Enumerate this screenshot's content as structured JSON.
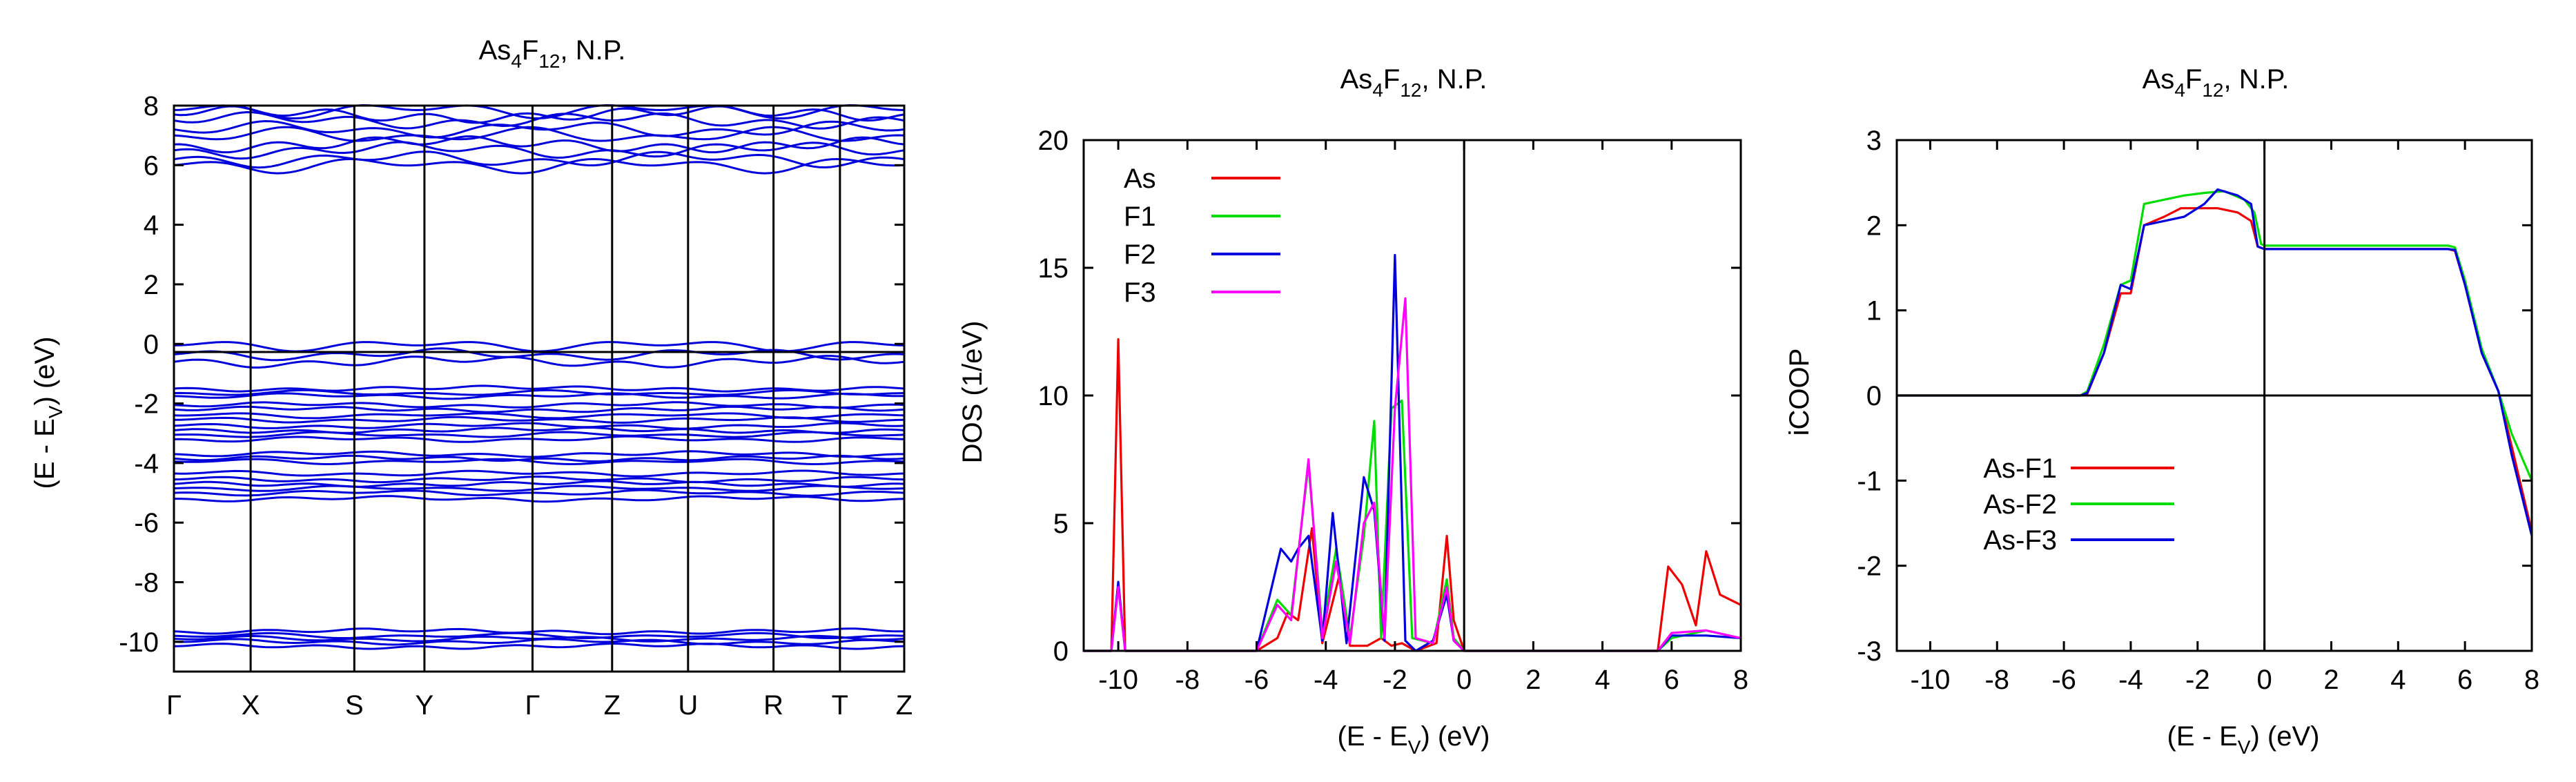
{
  "colors": {
    "As": "#ee0000",
    "F1": "#00dd00",
    "F2": "#0000dd",
    "F3": "#ff00ff",
    "band": "#0000dd",
    "As-F1": "#ee0000",
    "As-F2": "#00dd00",
    "As-F3": "#0000dd"
  },
  "chart_data": [
    {
      "type": "line",
      "kind": "band-structure",
      "title": "As4F12, N.P.",
      "title_parts": {
        "pre": "As",
        "sub1": "4",
        "mid": "F",
        "sub2": "12",
        "post": ", N.P."
      },
      "ylabel_parts": {
        "pre": "(E - E",
        "sub": "V",
        "post": ") (eV)"
      },
      "xlabel": "",
      "ylim": [
        -11,
        8
      ],
      "yticks": [
        8,
        6,
        4,
        2,
        0,
        -2,
        -4,
        -6,
        -8,
        -10
      ],
      "kpoints": [
        "Γ",
        "X",
        "S",
        "Y",
        "Γ",
        "Z",
        "U",
        "R",
        "T",
        "Z"
      ],
      "kpoint_positions": [
        0,
        0.105,
        0.247,
        0.343,
        0.491,
        0.6,
        0.704,
        0.821,
        0.912,
        1.0
      ],
      "bands_valence_upper": [
        -0.05,
        -0.35,
        -0.6,
        -1.5,
        -1.65,
        -1.75,
        -2.05,
        -2.2,
        -2.4,
        -2.55,
        -2.75,
        -2.9,
        -3.05,
        -3.2,
        -3.7,
        -3.85,
        -3.95,
        -4.35,
        -4.55,
        -4.7,
        -4.85,
        -5.0,
        -5.2
      ],
      "bands_deep": [
        -9.65,
        -9.8,
        -9.9,
        -10.0,
        -10.15
      ],
      "bands_conduction": [
        6.0,
        6.2,
        6.5,
        6.7,
        7.0,
        7.2,
        7.5,
        7.7,
        7.85
      ]
    },
    {
      "type": "line",
      "kind": "density-of-states",
      "title": "As4F12, N.P.",
      "title_parts": {
        "pre": "As",
        "sub1": "4",
        "mid": "F",
        "sub2": "12",
        "post": ", N.P."
      },
      "xlabel_parts": {
        "pre": "(E - E",
        "sub": "V",
        "post": ") (eV)"
      },
      "ylabel": "DOS (1/eV)",
      "xlim": [
        -11,
        8
      ],
      "ylim": [
        0,
        20
      ],
      "xticks": [
        -10,
        -8,
        -6,
        -4,
        -2,
        0,
        2,
        4,
        6,
        8
      ],
      "yticks": [
        0,
        5,
        10,
        15,
        20
      ],
      "legend_position": "top-left",
      "series": [
        {
          "name": "As",
          "points": [
            [
              -11,
              0
            ],
            [
              -10.2,
              0
            ],
            [
              -10,
              12.2
            ],
            [
              -9.8,
              0
            ],
            [
              -6,
              0
            ],
            [
              -5.4,
              0.5
            ],
            [
              -5.1,
              1.5
            ],
            [
              -4.8,
              1.2
            ],
            [
              -4.4,
              4.8
            ],
            [
              -4.1,
              0.3
            ],
            [
              -3.6,
              3
            ],
            [
              -3.3,
              0.2
            ],
            [
              -2.8,
              0.2
            ],
            [
              -2.4,
              0.5
            ],
            [
              -2.1,
              0.2
            ],
            [
              -1.8,
              0.3
            ],
            [
              -1.4,
              0
            ],
            [
              -0.8,
              0.3
            ],
            [
              -0.5,
              4.5
            ],
            [
              -0.3,
              1.2
            ],
            [
              0,
              0
            ],
            [
              5.6,
              0
            ],
            [
              5.9,
              3.3
            ],
            [
              6.3,
              2.6
            ],
            [
              6.7,
              1.0
            ],
            [
              7.0,
              3.9
            ],
            [
              7.4,
              2.2
            ],
            [
              8,
              1.8
            ]
          ]
        },
        {
          "name": "F1",
          "points": [
            [
              -11,
              0
            ],
            [
              -10.2,
              0
            ],
            [
              -10,
              2.6
            ],
            [
              -9.8,
              0
            ],
            [
              -6,
              0
            ],
            [
              -5.4,
              2
            ],
            [
              -5.0,
              1.4
            ],
            [
              -4.5,
              7.3
            ],
            [
              -4.1,
              0.8
            ],
            [
              -3.7,
              4
            ],
            [
              -3.3,
              0.5
            ],
            [
              -2.9,
              4.5
            ],
            [
              -2.6,
              9
            ],
            [
              -2.4,
              0.5
            ],
            [
              -2.1,
              9.5
            ],
            [
              -1.8,
              9.8
            ],
            [
              -1.5,
              0.5
            ],
            [
              -0.9,
              0.3
            ],
            [
              -0.5,
              2.8
            ],
            [
              -0.3,
              0.5
            ],
            [
              0,
              0
            ],
            [
              5.6,
              0
            ],
            [
              6,
              0.5
            ],
            [
              7,
              0.8
            ],
            [
              8,
              0.5
            ]
          ]
        },
        {
          "name": "F2",
          "points": [
            [
              -11,
              0
            ],
            [
              -10.2,
              0
            ],
            [
              -10,
              2.7
            ],
            [
              -9.8,
              0
            ],
            [
              -6,
              0
            ],
            [
              -5.3,
              4.0
            ],
            [
              -5.0,
              3.5
            ],
            [
              -4.8,
              4.0
            ],
            [
              -4.5,
              4.5
            ],
            [
              -4.1,
              0.4
            ],
            [
              -3.8,
              5.4
            ],
            [
              -3.4,
              0.3
            ],
            [
              -2.9,
              6.8
            ],
            [
              -2.6,
              5.5
            ],
            [
              -2.3,
              0.4
            ],
            [
              -2.0,
              15.5
            ],
            [
              -1.7,
              0.4
            ],
            [
              -1.4,
              0
            ],
            [
              -0.9,
              0.4
            ],
            [
              -0.5,
              2.2
            ],
            [
              -0.3,
              0.4
            ],
            [
              0,
              0
            ],
            [
              5.6,
              0
            ],
            [
              6,
              0.6
            ],
            [
              7,
              0.6
            ],
            [
              8,
              0.5
            ]
          ]
        },
        {
          "name": "F3",
          "points": [
            [
              -11,
              0
            ],
            [
              -10.2,
              0
            ],
            [
              -10,
              2.5
            ],
            [
              -9.8,
              0
            ],
            [
              -6,
              0
            ],
            [
              -5.4,
              1.8
            ],
            [
              -5.0,
              1.2
            ],
            [
              -4.5,
              7.5
            ],
            [
              -4.1,
              0.5
            ],
            [
              -3.7,
              3.5
            ],
            [
              -3.3,
              0.3
            ],
            [
              -2.9,
              5.0
            ],
            [
              -2.6,
              5.8
            ],
            [
              -2.3,
              0.5
            ],
            [
              -2.0,
              9.5
            ],
            [
              -1.7,
              13.8
            ],
            [
              -1.4,
              0.5
            ],
            [
              -0.9,
              0.3
            ],
            [
              -0.5,
              2.5
            ],
            [
              -0.3,
              0.4
            ],
            [
              0,
              0
            ],
            [
              5.6,
              0
            ],
            [
              6,
              0.7
            ],
            [
              7,
              0.8
            ],
            [
              8,
              0.5
            ]
          ]
        }
      ]
    },
    {
      "type": "line",
      "kind": "iCOOP",
      "title": "As4F12, N.P.",
      "title_parts": {
        "pre": "As",
        "sub1": "4",
        "mid": "F",
        "sub2": "12",
        "post": ", N.P."
      },
      "xlabel_parts": {
        "pre": "(E - E",
        "sub": "V",
        "post": ") (eV)"
      },
      "ylabel": "iCOOP",
      "xlim": [
        -11,
        8
      ],
      "ylim": [
        -3,
        3
      ],
      "xticks": [
        -10,
        -8,
        -6,
        -4,
        -2,
        0,
        2,
        4,
        6,
        8
      ],
      "yticks": [
        3,
        2,
        1,
        0,
        -1,
        -2,
        -3
      ],
      "legend_position": "bottom-left",
      "series": [
        {
          "name": "As-F1",
          "points": [
            [
              -11,
              0
            ],
            [
              -5.5,
              0
            ],
            [
              -5.3,
              0.02
            ],
            [
              -4.8,
              0.5
            ],
            [
              -4.3,
              1.2
            ],
            [
              -4.0,
              1.2
            ],
            [
              -3.6,
              2.0
            ],
            [
              -3.0,
              2.1
            ],
            [
              -2.5,
              2.2
            ],
            [
              -2.0,
              2.2
            ],
            [
              -1.4,
              2.2
            ],
            [
              -0.8,
              2.15
            ],
            [
              -0.4,
              2.05
            ],
            [
              -0.2,
              1.75
            ],
            [
              0,
              1.72
            ],
            [
              5.5,
              1.72
            ],
            [
              5.7,
              1.7
            ],
            [
              6.0,
              1.3
            ],
            [
              6.5,
              0.5
            ],
            [
              7.0,
              0.05
            ],
            [
              7.4,
              -0.6
            ],
            [
              8,
              -1.6
            ]
          ]
        },
        {
          "name": "As-F2",
          "points": [
            [
              -11,
              0
            ],
            [
              -5.5,
              0
            ],
            [
              -5.3,
              0.05
            ],
            [
              -4.8,
              0.6
            ],
            [
              -4.3,
              1.3
            ],
            [
              -4.0,
              1.35
            ],
            [
              -3.6,
              2.25
            ],
            [
              -3.0,
              2.3
            ],
            [
              -2.4,
              2.35
            ],
            [
              -1.8,
              2.38
            ],
            [
              -1.2,
              2.4
            ],
            [
              -0.6,
              2.3
            ],
            [
              -0.3,
              2.15
            ],
            [
              -0.1,
              1.78
            ],
            [
              0,
              1.76
            ],
            [
              5.5,
              1.76
            ],
            [
              5.7,
              1.74
            ],
            [
              6.0,
              1.35
            ],
            [
              6.5,
              0.55
            ],
            [
              7.0,
              0.05
            ],
            [
              7.4,
              -0.45
            ],
            [
              8,
              -1.0
            ]
          ]
        },
        {
          "name": "As-F3",
          "points": [
            [
              -11,
              0
            ],
            [
              -5.5,
              0
            ],
            [
              -5.3,
              0.03
            ],
            [
              -4.8,
              0.5
            ],
            [
              -4.3,
              1.3
            ],
            [
              -4.0,
              1.25
            ],
            [
              -3.6,
              2.0
            ],
            [
              -3.0,
              2.05
            ],
            [
              -2.4,
              2.1
            ],
            [
              -1.8,
              2.25
            ],
            [
              -1.4,
              2.42
            ],
            [
              -0.8,
              2.35
            ],
            [
              -0.4,
              2.25
            ],
            [
              -0.2,
              1.75
            ],
            [
              0,
              1.72
            ],
            [
              5.5,
              1.72
            ],
            [
              5.7,
              1.71
            ],
            [
              6.0,
              1.3
            ],
            [
              6.5,
              0.5
            ],
            [
              7.0,
              0.05
            ],
            [
              7.4,
              -0.7
            ],
            [
              8,
              -1.65
            ]
          ]
        }
      ]
    }
  ]
}
